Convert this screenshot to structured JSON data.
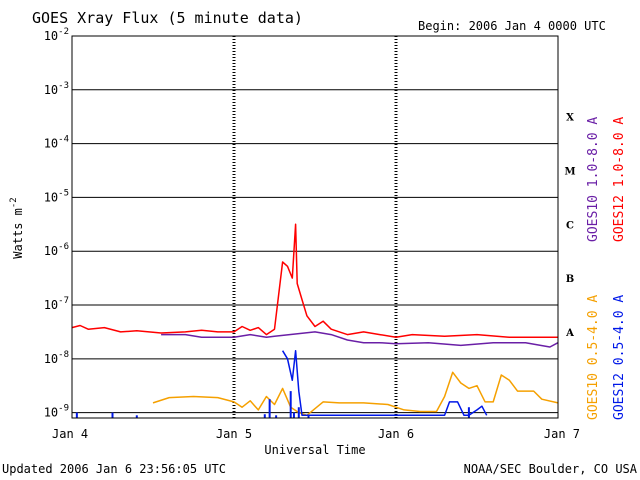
{
  "chart_data": {
    "type": "line",
    "title": "GOES Xray Flux (5 minute data)",
    "begin_label": "Begin:  2006 Jan 4 0000 UTC",
    "xlabel": "Universal Time",
    "ylabel_main": "Watts m",
    "ylabel_exp": "-2",
    "updated": "Updated 2006 Jan  6 23:56:05 UTC",
    "source": "NOAA/SEC Boulder, CO USA",
    "y_scale": "log",
    "ylim_exp": [
      -9.1,
      -2
    ],
    "y_ticks": [
      {
        "base": "10",
        "exp": "-2",
        "e": -2
      },
      {
        "base": "10",
        "exp": "-3",
        "e": -3
      },
      {
        "base": "10",
        "exp": "-4",
        "e": -4
      },
      {
        "base": "10",
        "exp": "-5",
        "e": -5
      },
      {
        "base": "10",
        "exp": "-6",
        "e": -6
      },
      {
        "base": "10",
        "exp": "-7",
        "e": -7
      },
      {
        "base": "10",
        "exp": "-8",
        "e": -8
      },
      {
        "base": "10",
        "exp": "-9",
        "e": -9
      }
    ],
    "x_days": [
      {
        "label": "Jan 4",
        "d": 0
      },
      {
        "label": "Jan 5",
        "d": 1
      },
      {
        "label": "Jan 6",
        "d": 2
      },
      {
        "label": "Jan 7",
        "d": 3
      }
    ],
    "flare_classes": [
      {
        "label": "X",
        "e": -3.5
      },
      {
        "label": "M",
        "e": -4.5
      },
      {
        "label": "C",
        "e": -5.5
      },
      {
        "label": "B",
        "e": -6.5
      },
      {
        "label": "A",
        "e": -7.5
      }
    ],
    "grid_horizontal": true,
    "colors": {
      "goes10_long": "#6a1fa6",
      "goes12_long": "#ff0000",
      "goes10_short": "#f5a000",
      "goes12_short": "#0018e8"
    },
    "series": [
      {
        "key": "goes12_long",
        "name": "GOES12 1.0-8.0 A",
        "points": [
          [
            0,
            -7.42
          ],
          [
            0.05,
            -7.38
          ],
          [
            0.1,
            -7.45
          ],
          [
            0.2,
            -7.42
          ],
          [
            0.3,
            -7.5
          ],
          [
            0.4,
            -7.48
          ],
          [
            0.55,
            -7.52
          ],
          [
            0.7,
            -7.5
          ],
          [
            0.8,
            -7.47
          ],
          [
            0.9,
            -7.5
          ],
          [
            1.0,
            -7.5
          ],
          [
            1.05,
            -7.4
          ],
          [
            1.1,
            -7.47
          ],
          [
            1.15,
            -7.42
          ],
          [
            1.2,
            -7.55
          ],
          [
            1.25,
            -7.45
          ],
          [
            1.3,
            -6.2
          ],
          [
            1.33,
            -6.28
          ],
          [
            1.36,
            -6.5
          ],
          [
            1.38,
            -5.5
          ],
          [
            1.39,
            -6.6
          ],
          [
            1.42,
            -6.9
          ],
          [
            1.45,
            -7.2
          ],
          [
            1.5,
            -7.4
          ],
          [
            1.55,
            -7.3
          ],
          [
            1.6,
            -7.45
          ],
          [
            1.7,
            -7.55
          ],
          [
            1.8,
            -7.5
          ],
          [
            1.9,
            -7.55
          ],
          [
            2.0,
            -7.6
          ],
          [
            2.1,
            -7.55
          ],
          [
            2.3,
            -7.58
          ],
          [
            2.5,
            -7.55
          ],
          [
            2.7,
            -7.6
          ],
          [
            2.9,
            -7.6
          ],
          [
            3.0,
            -7.6
          ]
        ]
      },
      {
        "key": "goes10_long",
        "name": "GOES10 1.0-8.0 A",
        "points": [
          [
            0.55,
            -7.55
          ],
          [
            0.7,
            -7.55
          ],
          [
            0.8,
            -7.6
          ],
          [
            0.9,
            -7.6
          ],
          [
            1.0,
            -7.6
          ],
          [
            1.1,
            -7.55
          ],
          [
            1.2,
            -7.6
          ],
          [
            1.25,
            -7.58
          ],
          [
            1.5,
            -7.5
          ],
          [
            1.6,
            -7.55
          ],
          [
            1.7,
            -7.65
          ],
          [
            1.8,
            -7.7
          ],
          [
            1.9,
            -7.7
          ],
          [
            2.0,
            -7.72
          ],
          [
            2.2,
            -7.7
          ],
          [
            2.4,
            -7.75
          ],
          [
            2.6,
            -7.7
          ],
          [
            2.8,
            -7.7
          ],
          [
            2.95,
            -7.78
          ],
          [
            3.0,
            -7.7
          ]
        ]
      },
      {
        "key": "goes10_short",
        "name": "GOES10 0.5-4.0 A",
        "points": [
          [
            0.5,
            -8.82
          ],
          [
            0.6,
            -8.72
          ],
          [
            0.75,
            -8.7
          ],
          [
            0.9,
            -8.72
          ],
          [
            1.0,
            -8.8
          ],
          [
            1.05,
            -8.9
          ],
          [
            1.1,
            -8.78
          ],
          [
            1.15,
            -8.95
          ],
          [
            1.2,
            -8.7
          ],
          [
            1.25,
            -8.85
          ],
          [
            1.3,
            -8.55
          ],
          [
            1.35,
            -8.9
          ],
          [
            1.4,
            -9.0
          ],
          [
            1.45,
            -9.05
          ],
          [
            1.55,
            -8.8
          ],
          [
            1.65,
            -8.82
          ],
          [
            1.8,
            -8.82
          ],
          [
            1.95,
            -8.85
          ],
          [
            2.05,
            -8.95
          ],
          [
            2.15,
            -8.98
          ],
          [
            2.25,
            -8.98
          ],
          [
            2.3,
            -8.7
          ],
          [
            2.35,
            -8.25
          ],
          [
            2.4,
            -8.45
          ],
          [
            2.45,
            -8.55
          ],
          [
            2.5,
            -8.5
          ],
          [
            2.55,
            -8.8
          ],
          [
            2.6,
            -8.8
          ],
          [
            2.65,
            -8.3
          ],
          [
            2.7,
            -8.4
          ],
          [
            2.75,
            -8.6
          ],
          [
            2.85,
            -8.6
          ],
          [
            2.9,
            -8.75
          ],
          [
            3.0,
            -8.82
          ]
        ]
      },
      {
        "key": "goes12_short",
        "name": "GOES12 0.5-4.0 A",
        "points": [
          [
            1.3,
            -7.85
          ],
          [
            1.33,
            -8.0
          ],
          [
            1.36,
            -8.4
          ],
          [
            1.38,
            -7.85
          ],
          [
            1.4,
            -8.6
          ],
          [
            1.42,
            -9.05
          ],
          [
            2.3,
            -9.05
          ],
          [
            2.33,
            -8.8
          ],
          [
            2.38,
            -8.8
          ],
          [
            2.42,
            -9.05
          ],
          [
            2.45,
            -9.05
          ],
          [
            2.5,
            -8.95
          ],
          [
            2.53,
            -8.88
          ],
          [
            2.56,
            -9.05
          ]
        ],
        "spikes": [
          [
            0.03,
            -9.0
          ],
          [
            0.25,
            -9.0
          ],
          [
            0.4,
            -9.05
          ],
          [
            1.19,
            -9.03
          ],
          [
            1.22,
            -8.75
          ],
          [
            1.26,
            -9.05
          ],
          [
            1.35,
            -8.6
          ],
          [
            1.37,
            -9.0
          ],
          [
            1.4,
            -8.9
          ],
          [
            1.46,
            -9.05
          ],
          [
            2.45,
            -8.9
          ]
        ]
      }
    ]
  }
}
